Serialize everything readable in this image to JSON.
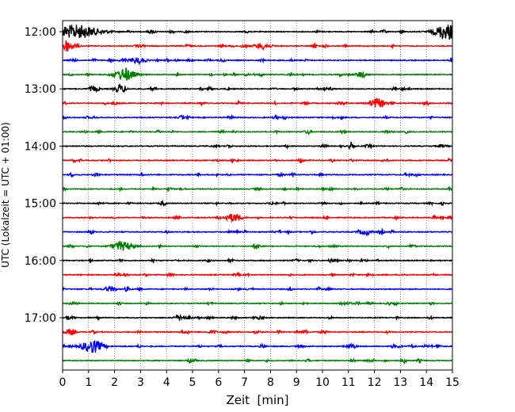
{
  "chart_data": {
    "type": "line",
    "title": "",
    "xlabel": "Zeit  [min]",
    "ylabel": "UTC (Lokalzeit = UTC + 01:00)",
    "xlim": [
      0,
      15
    ],
    "x_ticks": [
      0,
      1,
      2,
      3,
      4,
      5,
      6,
      7,
      8,
      9,
      10,
      11,
      12,
      13,
      14,
      15
    ],
    "y_tick_labels": [
      "12:00",
      "13:00",
      "14:00",
      "15:00",
      "16:00",
      "17:00"
    ],
    "grid": "vertical dotted lines at each minute",
    "trace_interval_min": 15,
    "trace_colors": [
      "#000000",
      "#ff0000",
      "#0000ff",
      "#008000"
    ],
    "series": [
      {
        "start": "12:00",
        "color": "#000000",
        "events": [
          {
            "x": 0.5,
            "amp": 1.0,
            "dur": 0.9
          },
          {
            "x": 14.8,
            "amp": 1.0,
            "dur": 0.5
          }
        ]
      },
      {
        "start": "12:15",
        "color": "#ff0000",
        "events": [
          {
            "x": 0.1,
            "amp": 0.75,
            "dur": 0.3
          },
          {
            "x": 7.7,
            "amp": 0.45,
            "dur": 0.3
          }
        ]
      },
      {
        "start": "12:30",
        "color": "#0000ff",
        "events": [
          {
            "x": 2.9,
            "amp": 0.45,
            "dur": 0.3
          }
        ]
      },
      {
        "start": "12:45",
        "color": "#008000",
        "events": [
          {
            "x": 2.4,
            "amp": 0.85,
            "dur": 0.4
          },
          {
            "x": 11.5,
            "amp": 0.45,
            "dur": 0.2
          }
        ]
      },
      {
        "start": "13:00",
        "color": "#000000",
        "events": [
          {
            "x": 2.2,
            "amp": 0.6,
            "dur": 0.2
          },
          {
            "x": 1.2,
            "amp": 0.4,
            "dur": 0.2
          }
        ]
      },
      {
        "start": "13:15",
        "color": "#ff0000",
        "events": [
          {
            "x": 12.1,
            "amp": 0.7,
            "dur": 0.3
          }
        ]
      },
      {
        "start": "13:30",
        "color": "#0000ff",
        "events": []
      },
      {
        "start": "13:45",
        "color": "#008000",
        "events": []
      },
      {
        "start": "14:00",
        "color": "#000000",
        "events": []
      },
      {
        "start": "14:15",
        "color": "#ff0000",
        "events": []
      },
      {
        "start": "14:30",
        "color": "#0000ff",
        "events": []
      },
      {
        "start": "14:45",
        "color": "#008000",
        "events": []
      },
      {
        "start": "15:00",
        "color": "#000000",
        "events": []
      },
      {
        "start": "15:15",
        "color": "#ff0000",
        "events": [
          {
            "x": 6.6,
            "amp": 0.6,
            "dur": 0.3
          }
        ]
      },
      {
        "start": "15:30",
        "color": "#0000ff",
        "events": [
          {
            "x": 11.7,
            "amp": 0.4,
            "dur": 0.2
          }
        ]
      },
      {
        "start": "15:45",
        "color": "#008000",
        "events": [
          {
            "x": 2.3,
            "amp": 0.6,
            "dur": 0.4
          }
        ]
      },
      {
        "start": "16:00",
        "color": "#000000",
        "events": []
      },
      {
        "start": "16:15",
        "color": "#ff0000",
        "events": []
      },
      {
        "start": "16:30",
        "color": "#0000ff",
        "events": [
          {
            "x": 1.8,
            "amp": 0.35,
            "dur": 0.2
          }
        ]
      },
      {
        "start": "16:45",
        "color": "#008000",
        "events": []
      },
      {
        "start": "17:00",
        "color": "#000000",
        "events": [
          {
            "x": 4.5,
            "amp": 0.4,
            "dur": 0.2
          }
        ]
      },
      {
        "start": "17:15",
        "color": "#ff0000",
        "events": [
          {
            "x": 0.3,
            "amp": 0.4,
            "dur": 0.2
          }
        ]
      },
      {
        "start": "17:30",
        "color": "#0000ff",
        "events": [
          {
            "x": 1.15,
            "amp": 0.95,
            "dur": 0.4
          },
          {
            "x": 11.1,
            "amp": 0.3,
            "dur": 0.2
          }
        ]
      },
      {
        "start": "17:45",
        "color": "#008000",
        "events": []
      }
    ]
  }
}
